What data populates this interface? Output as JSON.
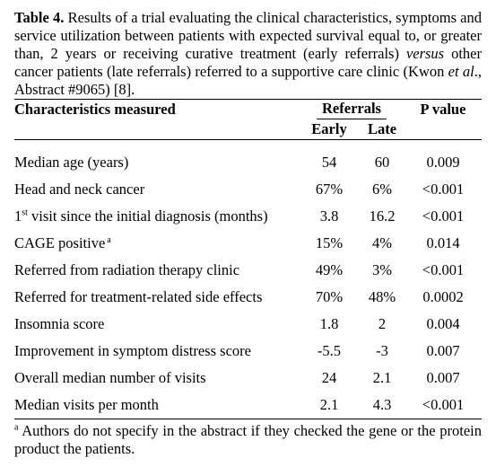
{
  "caption": {
    "label": "Table 4.",
    "text_part1": " Results of a trial evaluating the clinical characteristics, symptoms and service utilization between patients with expected survival equal to, or greater than, 2 years or receiving curative treatment (early referrals) ",
    "italic": "versus",
    "text_part2": " other cancer patients (late referrals) referred to a supportive care clinic (Kwon ",
    "etal": "et al",
    "text_part3": "., Abstract #9065) [8]."
  },
  "table": {
    "headers": {
      "characteristics": "Characteristics measured",
      "referrals": "Referrals",
      "pvalue": "P value",
      "early": "Early",
      "late": "Late"
    },
    "rows": [
      {
        "label": "Median age (years)",
        "early": "54",
        "late": "60",
        "p": "0.009"
      },
      {
        "label": "Head and neck cancer",
        "early": "67%",
        "late": "6%",
        "p": "<0.001"
      },
      {
        "label_prefix": "1",
        "label_sup": "st",
        "label_rest": " visit since the initial diagnosis (months)",
        "early": "3.8",
        "late": "16.2",
        "p": "<0.001"
      },
      {
        "label": "CAGE positive",
        "footnote_mark": "a",
        "early": "15%",
        "late": "4%",
        "p": "0.014"
      },
      {
        "label": "Referred from radiation therapy clinic",
        "early": "49%",
        "late": "3%",
        "p": "<0.001"
      },
      {
        "label": "Referred for treatment-related side effects",
        "early": "70%",
        "late": "48%",
        "p": "0.0002"
      },
      {
        "label": "Insomnia score",
        "early": "1.8",
        "late": "2",
        "p": "0.004"
      },
      {
        "label": "Improvement in symptom distress score",
        "early": "-5.5",
        "late": "-3",
        "p": "0.007"
      },
      {
        "label": "Overall median number of visits",
        "early": "24",
        "late": "2.1",
        "p": "0.007"
      },
      {
        "label": "Median visits per month",
        "early": "2.1",
        "late": "4.3",
        "p": "<0.001"
      }
    ]
  },
  "footnote": {
    "mark": "a",
    "text": " Authors do not specify in the abstract if they checked the gene or the protein product the patients."
  }
}
